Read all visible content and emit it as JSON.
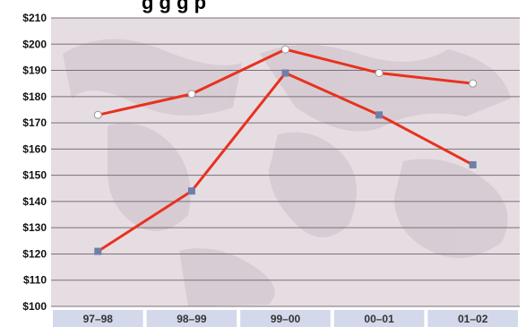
{
  "chart_data": {
    "type": "line",
    "categories": [
      "97–98",
      "98–99",
      "99–00",
      "00–01",
      "01–02"
    ],
    "y_tick_labels": [
      "$210",
      "$200",
      "$190",
      "$180",
      "$170",
      "$160",
      "$150",
      "$140",
      "$130",
      "$120",
      "$110",
      "$100"
    ],
    "ylim": [
      100,
      210
    ],
    "grid": true,
    "legend": "none",
    "series": [
      {
        "values": [
          173,
          181,
          198,
          189,
          185
        ],
        "color": "#e8321e",
        "marker": "circle",
        "marker_color": "#ffffff"
      },
      {
        "values": [
          121,
          144,
          189,
          173,
          154
        ],
        "color": "#e8321e",
        "marker": "square",
        "marker_color": "#6f7fa8"
      }
    ]
  },
  "colors": {
    "plot_background": "#e6dde3",
    "texture": "#d3c7cf",
    "gridline": "#7a7078",
    "category_tab": "#d3d9ea"
  }
}
